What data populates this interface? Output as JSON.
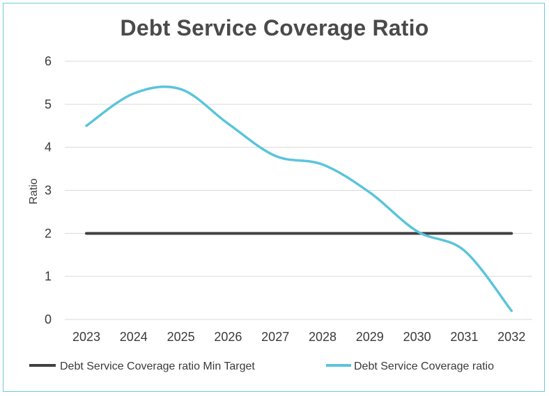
{
  "chart_data": {
    "type": "line",
    "title": "Debt Service Coverage Ratio",
    "ylabel": "Ratio",
    "xlabel": "",
    "categories": [
      "2023",
      "2024",
      "2025",
      "2026",
      "2027",
      "2028",
      "2029",
      "2030",
      "2031",
      "2032"
    ],
    "ylim": [
      0,
      6
    ],
    "yticks": [
      "0",
      "1",
      "2",
      "3",
      "4",
      "5",
      "6"
    ],
    "grid": true,
    "legend": "bottom",
    "series": [
      {
        "name": "Debt Service Coverage ratio Min Target",
        "values": [
          2,
          2,
          2,
          2,
          2,
          2,
          2,
          2,
          2,
          2
        ],
        "color": "#404040"
      },
      {
        "name": "Debt Service Coverage ratio",
        "values": [
          4.5,
          5.25,
          5.35,
          4.55,
          3.8,
          3.6,
          2.95,
          2.05,
          1.6,
          0.2
        ],
        "color": "#5bc4db"
      }
    ]
  }
}
